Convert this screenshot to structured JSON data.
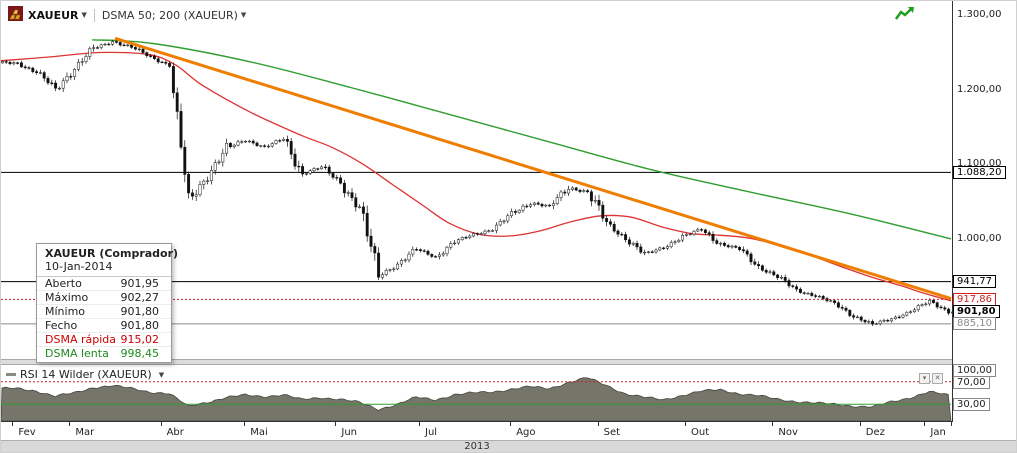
{
  "toolbar": {
    "instrument": "XAUEUR",
    "indicator": "DSMA 50; 200 (XAUEUR)"
  },
  "tooltip": {
    "title": "XAUEUR (Comprador)",
    "date": "10-Jan-2014",
    "rows": [
      {
        "label": "Aberto",
        "value": "901,95"
      },
      {
        "label": "Máximo",
        "value": "902,27"
      },
      {
        "label": "Mínimo",
        "value": "901,80"
      },
      {
        "label": "Fecho",
        "value": "901,80"
      }
    ],
    "ma_rows": [
      {
        "label": "DSMA rápida",
        "value": "915,02",
        "color": "#cc0000"
      },
      {
        "label": "DSMA lenta",
        "value": "998,45",
        "color": "#1e8a1e"
      }
    ]
  },
  "chart_data": [
    {
      "type": "candlestick",
      "title": "XAUEUR daily candles with DSMA 50, DSMA 200 and descending trendline",
      "symbol": "XAUEUR",
      "timeframe": "Fev 2013 - Jan 2014, daily",
      "ylim": [
        838,
        1318
      ],
      "y_ticks": [
        {
          "label": "1.300,00",
          "price": 1300
        },
        {
          "label": "1.200,00",
          "price": 1200
        },
        {
          "label": "1.100,00",
          "price": 1100
        },
        {
          "label": "1.000,00",
          "price": 1000
        }
      ],
      "levels": [
        {
          "label": "1.088,20",
          "price": 1088.2,
          "color": "#000000",
          "style": "solid"
        },
        {
          "label": "941,77",
          "price": 941.77,
          "color": "#000000",
          "style": "solid"
        },
        {
          "label": "917,86",
          "price": 917.86,
          "color": "#cc2222",
          "style": "dotted"
        },
        {
          "label": "901,80",
          "price": 901.8,
          "color": "#000000",
          "style": "current"
        },
        {
          "label": "885,10",
          "price": 885.1,
          "color": "#8a8a8a",
          "style": "solid"
        }
      ],
      "weekly_closes": [
        1235,
        1222,
        1200,
        1228,
        1254,
        1264,
        1256,
        1243,
        1232,
        1048,
        1085,
        1120,
        1132,
        1122,
        1133,
        1087,
        1095,
        1075,
        1040,
        950,
        965,
        985,
        975,
        995,
        1005,
        1012,
        1032,
        1048,
        1042,
        1068,
        1062,
        1020,
        1000,
        978,
        988,
        1002,
        1012,
        992,
        985,
        962,
        948,
        930,
        923,
        912,
        896,
        884,
        892,
        902,
        915,
        902,
        901.8
      ],
      "last": {
        "date": "10-Jan-2014",
        "open": 901.95,
        "high": 902.27,
        "low": 901.8,
        "close": 901.8
      },
      "overlays": [
        {
          "name": "DSMA 50 (rápida)",
          "type": "line",
          "color": "#dd3333",
          "width": 1.3,
          "points": [
            [
              0,
              1238
            ],
            [
              13,
              1243
            ],
            [
              26,
              1249
            ],
            [
              39,
              1246
            ],
            [
              46,
              1232
            ],
            [
              53,
              1205
            ],
            [
              66,
              1168
            ],
            [
              79,
              1138
            ],
            [
              87,
              1122
            ],
            [
              95,
              1100
            ],
            [
              103,
              1072
            ],
            [
              111,
              1044
            ],
            [
              118,
              1020
            ],
            [
              126,
              1005
            ],
            [
              134,
              1003
            ],
            [
              142,
              1010
            ],
            [
              150,
              1022
            ],
            [
              158,
              1030
            ],
            [
              166,
              1028
            ],
            [
              174,
              1015
            ],
            [
              182,
              1006
            ],
            [
              189,
              1004
            ],
            [
              197,
              1000
            ],
            [
              205,
              990
            ],
            [
              213,
              977
            ],
            [
              221,
              962
            ],
            [
              229,
              948
            ],
            [
              237,
              936
            ],
            [
              243,
              926
            ],
            [
              250,
              916
            ]
          ]
        },
        {
          "name": "DSMA 200 (lenta)",
          "type": "line",
          "color": "#2f9e2f",
          "width": 1.4,
          "points": [
            [
              24,
              1266
            ],
            [
              40,
              1261
            ],
            [
              66,
              1236
            ],
            [
              92,
              1202
            ],
            [
              118,
              1166
            ],
            [
              145,
              1128
            ],
            [
              171,
              1092
            ],
            [
              197,
              1062
            ],
            [
              224,
              1032
            ],
            [
              250,
              999
            ]
          ]
        },
        {
          "name": "trendline",
          "type": "line",
          "color": "#ef7d00",
          "width": 3,
          "points": [
            [
              30,
              1268
            ],
            [
              250,
              919
            ]
          ]
        }
      ],
      "month_boundaries_days": [
        3,
        18,
        42,
        64,
        88,
        110,
        134,
        157,
        180,
        203,
        226,
        243
      ],
      "months": [
        "Fev",
        "Mar",
        "Abr",
        "Mai",
        "Jun",
        "Jul",
        "Ago",
        "Set",
        "Out",
        "Nov",
        "Dez",
        "Jan"
      ],
      "year": "2013"
    },
    {
      "type": "area",
      "title": "RSI 14 Wilder (XAUEUR)",
      "ylim": [
        0,
        100
      ],
      "y_ticks": [
        {
          "label": "100,00",
          "value": 100
        },
        {
          "label": "70,00",
          "value": 70
        },
        {
          "label": "30,00",
          "value": 30
        }
      ],
      "levels": [
        {
          "value": 70,
          "color": "#cc2222",
          "style": "dotted"
        },
        {
          "value": 30,
          "color": "#2f9e2f",
          "style": "solid"
        }
      ],
      "weekly_values": [
        58,
        54,
        44,
        50,
        60,
        63,
        58,
        52,
        49,
        26,
        34,
        42,
        46,
        44,
        47,
        38,
        42,
        39,
        33,
        21,
        30,
        42,
        38,
        47,
        50,
        52,
        57,
        61,
        58,
        69,
        77,
        64,
        49,
        42,
        38,
        46,
        53,
        56,
        49,
        45,
        39,
        35,
        32,
        30,
        27,
        25,
        34,
        42,
        52,
        46
      ],
      "fill": "#757569",
      "stroke": "#44463f"
    }
  ]
}
